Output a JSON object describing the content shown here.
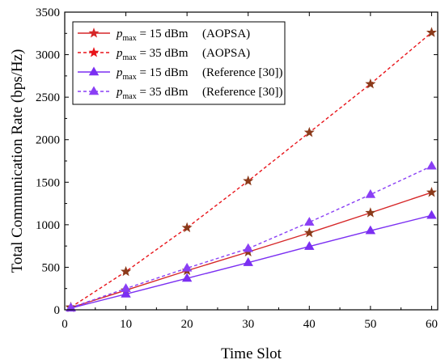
{
  "chart_data": {
    "type": "line",
    "xlabel": "Time Slot",
    "ylabel": "Total Communication Rate (bps/Hz)",
    "xlim": [
      0,
      61
    ],
    "ylim": [
      0,
      3500
    ],
    "x_ticks": [
      0,
      10,
      20,
      30,
      40,
      50,
      60
    ],
    "y_ticks": [
      0,
      500,
      1000,
      1500,
      2000,
      2500,
      3000,
      3500
    ],
    "grid": false,
    "legend_position": "top-left",
    "x": [
      1,
      10,
      20,
      30,
      40,
      50,
      60
    ],
    "series": [
      {
        "legend": {
          "p": "p",
          "sub": "max",
          "eq": " = 15 dBm",
          "tag": "(AOPSA)"
        },
        "values": [
          25,
          230,
          460,
          680,
          905,
          1140,
          1380
        ],
        "color": "#d62728",
        "dash": false,
        "marker": "star"
      },
      {
        "legend": {
          "p": "p",
          "sub": "max",
          "eq": " = 35 dBm",
          "tag": "(AOPSA)"
        },
        "values": [
          30,
          450,
          965,
          1515,
          2085,
          2655,
          3260
        ],
        "color": "#e8141a",
        "dash": true,
        "marker": "star"
      },
      {
        "legend": {
          "p": "p",
          "sub": "max",
          "eq": " = 15 dBm",
          "tag": "(Reference [30])"
        },
        "values": [
          20,
          185,
          370,
          555,
          745,
          930,
          1110
        ],
        "color": "#7b2ff2",
        "dash": false,
        "marker": "triangle"
      },
      {
        "legend": {
          "p": "p",
          "sub": "max",
          "eq": " = 35 dBm",
          "tag": "(Reference [30])"
        },
        "values": [
          25,
          250,
          490,
          720,
          1030,
          1355,
          1690
        ],
        "color": "#8a3ff5",
        "dash": true,
        "marker": "triangle"
      }
    ]
  }
}
